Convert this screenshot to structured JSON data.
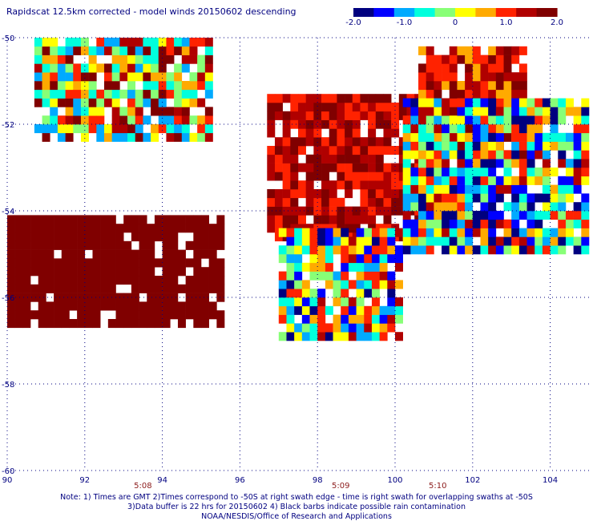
{
  "title": "Rapidscat 12.5km corrected - model winds 20150602 descending",
  "colorbar": {
    "tick_labels": [
      "-2.0",
      "-1.0",
      "0",
      "1.0",
      "2.0"
    ],
    "range": [
      -2.0,
      2.0
    ],
    "colormap": [
      "#00007f",
      "#0000ff",
      "#00aaff",
      "#00ffdd",
      "#88ff77",
      "#ffff00",
      "#ffaa00",
      "#ff2200",
      "#b00000",
      "#800000"
    ]
  },
  "chart_data": {
    "type": "heatmap",
    "title": "Rapidscat 12.5km corrected - model winds 20150602 descending",
    "xlabel": "",
    "ylabel": "",
    "xlim": [
      90,
      105
    ],
    "ylim": [
      -60,
      -50
    ],
    "x_tick_labels": [
      "90",
      "92",
      "94",
      "96",
      "98",
      "100",
      "102",
      "104"
    ],
    "y_tick_labels": [
      "-50",
      "-52",
      "-54",
      "-56",
      "-58",
      "-60"
    ],
    "grid": true,
    "colorbar_range": [
      -2.0,
      2.0
    ],
    "time_labels": [
      {
        "text": "5:08",
        "lon": 93.5
      },
      {
        "text": "5:09",
        "lon": 98.6
      },
      {
        "text": "5:10",
        "lon": 101.1
      }
    ],
    "cell_size_deg": 0.2,
    "regions": [
      {
        "name": "upper-left swath",
        "lon": [
          90.7,
          95.2
        ],
        "lat": [
          -52.4,
          -50.0
        ],
        "value_range": [
          -1.2,
          2.0
        ]
      },
      {
        "name": "left saturated block",
        "lon": [
          90.0,
          95.6
        ],
        "lat": [
          -56.7,
          -54.2
        ],
        "value_range": [
          1.5,
          2.0
        ]
      },
      {
        "name": "central positive swath",
        "lon": [
          96.7,
          100.6
        ],
        "lat": [
          -54.7,
          -51.4
        ],
        "value_range": [
          0.8,
          2.0
        ]
      },
      {
        "name": "central lower swath",
        "lon": [
          97.0,
          100.2
        ],
        "lat": [
          -57.0,
          -54.5
        ],
        "value_range": [
          -1.8,
          1.5
        ]
      },
      {
        "name": "right upper swath",
        "lon": [
          100.6,
          103.4
        ],
        "lat": [
          -52.8,
          -50.2
        ],
        "value_range": [
          0.5,
          2.0
        ]
      },
      {
        "name": "right lower swath",
        "lon": [
          100.2,
          105.0
        ],
        "lat": [
          -55.0,
          -51.5
        ],
        "value_range": [
          -2.0,
          1.5
        ]
      }
    ]
  },
  "notes": {
    "line1": "Note: 1) Times are GMT 2)Times correspond to -50S at right swath edge - time is right swath for overlapping swaths at -50S",
    "line2": "3)Data buffer is 22 hrs for 20150602 4) Black barbs indicate possible rain contamination",
    "line3": "NOAA/NESDIS/Office of Research and Applications"
  }
}
